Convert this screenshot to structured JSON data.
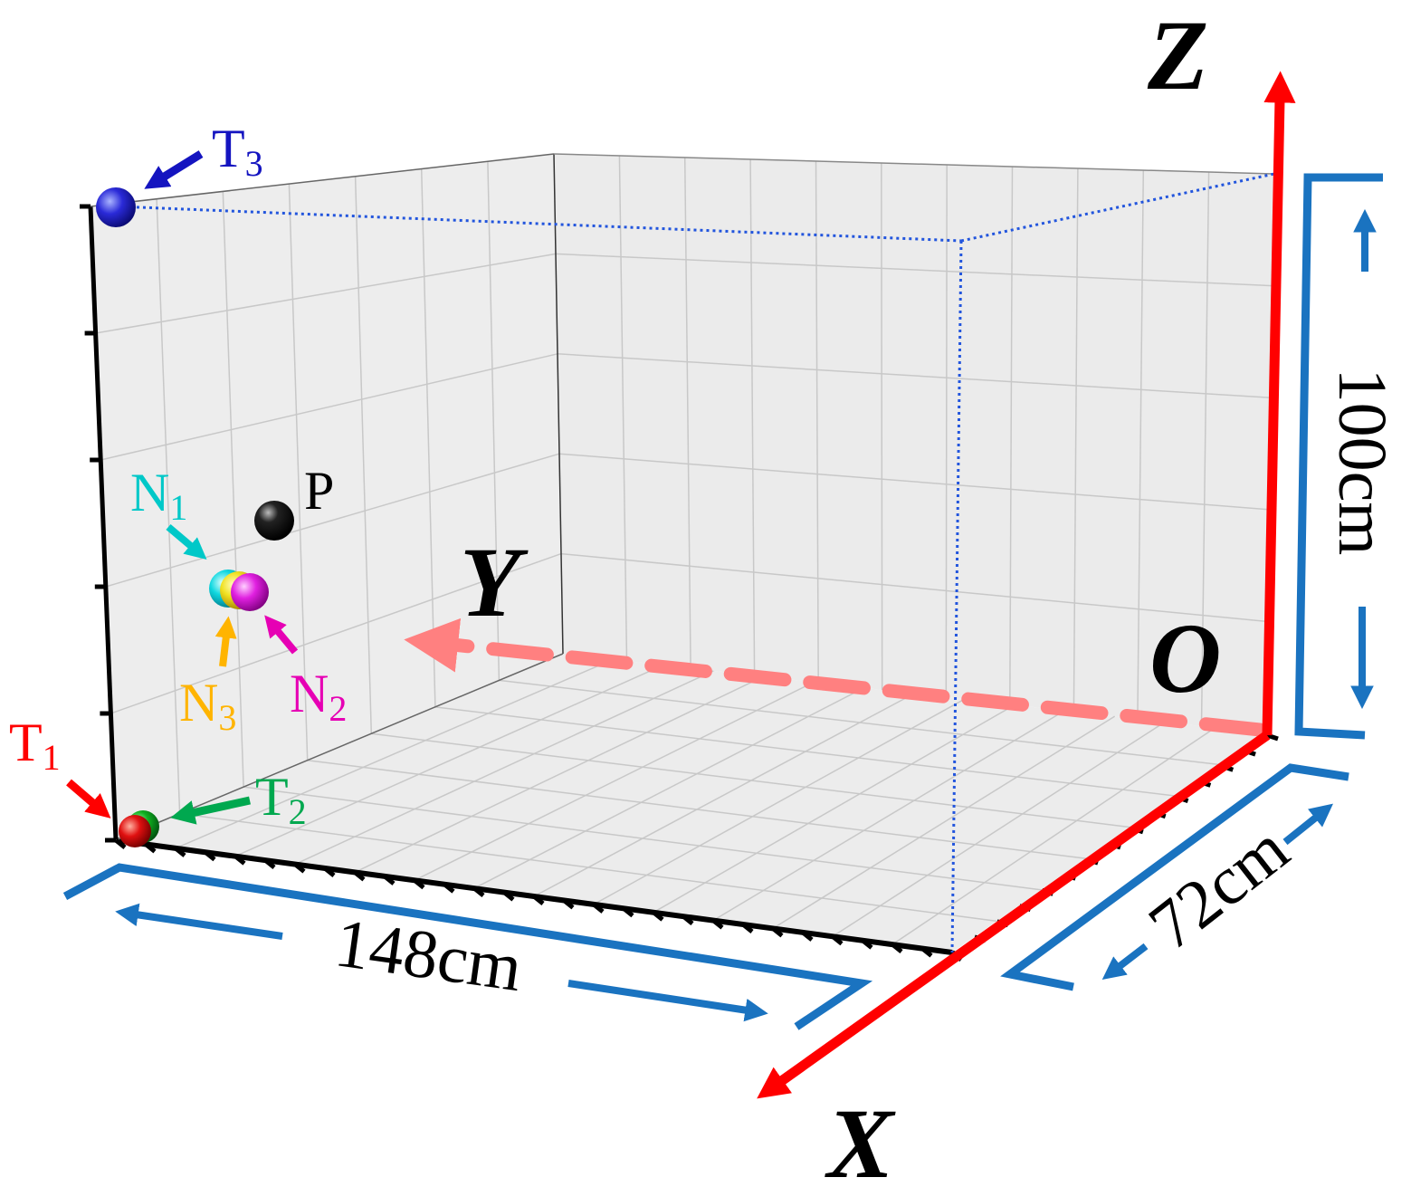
{
  "colors": {
    "axis": "#ff0000",
    "y_axis_dashed": "#ff8080",
    "dimension": "#1a73c0",
    "floor": "#ececec",
    "wall_left": "#ededed",
    "wall_back": "#ebebeb",
    "grid": "#c8c8c8",
    "frame": "#000000",
    "dotted_guide": "#2255dd",
    "T1": "#ff0000",
    "T2": "#00a84f",
    "T3": "#1414c0",
    "N1": "#00c8c8",
    "N2": "#e600b4",
    "N3": "#ffb400",
    "P": "#000000"
  },
  "axes": {
    "x_label": "X",
    "y_label": "Y",
    "z_label": "Z",
    "origin_label": "O"
  },
  "dimensions": {
    "length": "148cm",
    "width": "72cm",
    "height": "100cm"
  },
  "markers": {
    "T1": {
      "base": "T",
      "sub": "1"
    },
    "T2": {
      "base": "T",
      "sub": "2"
    },
    "T3": {
      "base": "T",
      "sub": "3"
    },
    "N1": {
      "base": "N",
      "sub": "1"
    },
    "N2": {
      "base": "N",
      "sub": "2"
    },
    "N3": {
      "base": "N",
      "sub": "3"
    },
    "P": {
      "base": "P"
    }
  }
}
